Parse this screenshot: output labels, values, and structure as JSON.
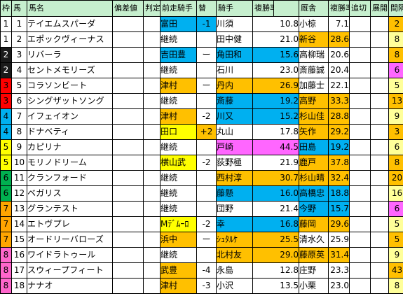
{
  "headers": [
    "枠",
    "馬",
    "馬名",
    "偏差値",
    "判定",
    "前走騎手",
    "替",
    "騎手",
    "複勝率",
    "",
    "厩舎",
    "複勝率",
    "追切",
    "展開",
    "間隔",
    "↑"
  ],
  "colors": {
    "frame": {
      "1": "#ffffff",
      "2": "#1a1a1a",
      "3": "#ff0000",
      "4": "#00b0f0",
      "5": "#ffff00",
      "6": "#00b050",
      "7": "#ffa500",
      "8": "#ff66cc"
    },
    "orange": "#ffc000",
    "yellow": "#ffff00",
    "blue": "#00b0f0",
    "pink": "#ff66ff",
    "lightyellow": "#ffff99",
    "white": "#ffffff",
    "header": "#c6efce"
  },
  "rows": [
    {
      "frame": "1",
      "num": "1",
      "name": "テイエムスパーダ",
      "prev_jockey": "富田",
      "change": "-1",
      "jockey": "川須",
      "jrate": "10.8",
      "trainer": "小椋",
      "trate": "7.1",
      "interval": "2",
      "prev_bg": "blue",
      "change_bg": "blue",
      "jockey_bg": "white",
      "trainer_bg": "white",
      "interval_bg": "orange"
    },
    {
      "frame": "1",
      "num": "2",
      "name": "エポックヴィーナス",
      "prev_jockey": "継続",
      "change": "",
      "jockey": "田中健",
      "jrate": "21.0",
      "trainer": "新谷",
      "trate": "28.6",
      "interval": "8",
      "prev_bg": "white",
      "change_bg": "white",
      "jockey_bg": "white",
      "trainer_bg": "orange",
      "interval_bg": "lightyellow"
    },
    {
      "frame": "2",
      "num": "3",
      "name": "リバーラ",
      "prev_jockey": "吉田豊",
      "change": "ー",
      "jockey": "角田和",
      "jrate": "15.6",
      "trainer": "高柳瑞",
      "trate": "20.6",
      "interval": "8",
      "prev_bg": "blue",
      "change_bg": "white",
      "jockey_bg": "blue",
      "trainer_bg": "white",
      "interval_bg": "orange"
    },
    {
      "frame": "2",
      "num": "4",
      "name": "セントメモリーズ",
      "prev_jockey": "継続",
      "change": "",
      "jockey": "石川",
      "jrate": "23.0",
      "trainer": "斎藤誠",
      "trate": "20.4",
      "interval": "6",
      "prev_bg": "white",
      "change_bg": "white",
      "jockey_bg": "white",
      "trainer_bg": "white",
      "interval_bg": "pink"
    },
    {
      "frame": "3",
      "num": "5",
      "name": "コラソンビート",
      "prev_jockey": "津村",
      "change": "ー",
      "jockey": "丹内",
      "jrate": "26.9",
      "trainer": "加藤士",
      "trate": "22.1",
      "interval": "5",
      "prev_bg": "orange",
      "change_bg": "white",
      "jockey_bg": "orange",
      "trainer_bg": "white",
      "interval_bg": "lightyellow"
    },
    {
      "frame": "3",
      "num": "6",
      "name": "シングザットソング",
      "prev_jockey": "継続",
      "change": "",
      "jockey": "斎藤",
      "jrate": "19.2",
      "trainer": "高野",
      "trate": "33.3",
      "interval": "13",
      "prev_bg": "white",
      "change_bg": "white",
      "jockey_bg": "blue",
      "trainer_bg": "orange",
      "interval_bg": "orange"
    },
    {
      "frame": "4",
      "num": "7",
      "name": "イフェイオン",
      "prev_jockey": "津村",
      "change": "-2",
      "jockey": "川又",
      "jrate": "15.2",
      "trainer": "杉山佳",
      "trate": "28.8",
      "interval": "9",
      "prev_bg": "orange",
      "change_bg": "white",
      "jockey_bg": "blue",
      "trainer_bg": "orange",
      "interval_bg": "lightyellow"
    },
    {
      "frame": "4",
      "num": "8",
      "name": "ドナベティ",
      "prev_jockey": "田口",
      "change": "+2",
      "jockey": "丸山",
      "jrate": "17.8",
      "trainer": "矢作",
      "trate": "29.2",
      "interval": "3",
      "prev_bg": "yellow",
      "change_bg": "orange",
      "jockey_bg": "white",
      "trainer_bg": "orange",
      "interval_bg": "orange"
    },
    {
      "frame": "5",
      "num": "9",
      "name": "カピリナ",
      "prev_jockey": "継続",
      "change": "",
      "jockey": "戸崎",
      "jrate": "44.5",
      "trainer": "田島",
      "trate": "19.2",
      "interval": "6",
      "prev_bg": "white",
      "change_bg": "white",
      "jockey_bg": "pink",
      "trainer_bg": "blue",
      "interval_bg": "lightyellow"
    },
    {
      "frame": "5",
      "num": "10",
      "name": "モリノドリーム",
      "prev_jockey": "横山武",
      "change": "-2",
      "jockey": "荻野極",
      "jrate": "21.9",
      "trainer": "鹿戸",
      "trate": "37.8",
      "interval": "8",
      "prev_bg": "yellow",
      "change_bg": "white",
      "jockey_bg": "white",
      "trainer_bg": "orange",
      "interval_bg": "orange"
    },
    {
      "frame": "6",
      "num": "11",
      "name": "クランフォード",
      "prev_jockey": "継続",
      "change": "",
      "jockey": "西村淳",
      "jrate": "30.7",
      "trainer": "杉山晴",
      "trate": "32.4",
      "interval": "20",
      "prev_bg": "white",
      "change_bg": "white",
      "jockey_bg": "orange",
      "trainer_bg": "orange",
      "interval_bg": "orange"
    },
    {
      "frame": "6",
      "num": "12",
      "name": "ベガリス",
      "prev_jockey": "継続",
      "change": "",
      "jockey": "藤懸",
      "jrate": "16.0",
      "trainer": "高橋忠",
      "trate": "18.8",
      "interval": "16",
      "prev_bg": "white",
      "change_bg": "white",
      "jockey_bg": "blue",
      "trainer_bg": "blue",
      "interval_bg": "lightyellow"
    },
    {
      "frame": "7",
      "num": "13",
      "name": "グランテスト",
      "prev_jockey": "継続",
      "change": "",
      "jockey": "団野",
      "jrate": "21.4",
      "trainer": "今野",
      "trate": "15.7",
      "interval": "6",
      "prev_bg": "white",
      "change_bg": "white",
      "jockey_bg": "white",
      "trainer_bg": "blue",
      "interval_bg": "pink"
    },
    {
      "frame": "7",
      "num": "14",
      "name": "エトヴプレ",
      "prev_jockey": "Mﾃﾞﾑｰﾛ",
      "change": "-2",
      "jockey": "幸",
      "jrate": "16.8",
      "trainer": "藤岡",
      "trate": "29.6",
      "interval": "5",
      "prev_bg": "yellow",
      "change_bg": "white",
      "jockey_bg": "blue",
      "trainer_bg": "orange",
      "interval_bg": "lightyellow"
    },
    {
      "frame": "7",
      "num": "15",
      "name": "オードリーバローズ",
      "prev_jockey": "浜中",
      "change": "ー",
      "jockey": "ｼｭﾀﾙｹ",
      "jrate": "25.5",
      "trainer": "清水久",
      "trate": "25.9",
      "interval": "5",
      "prev_bg": "orange",
      "change_bg": "white",
      "jockey_bg": "orange",
      "trainer_bg": "white",
      "interval_bg": "orange"
    },
    {
      "frame": "8",
      "num": "16",
      "name": "ワイドラトゥール",
      "prev_jockey": "継続",
      "change": "",
      "jockey": "北村友",
      "jrate": "29.0",
      "trainer": "藤原英",
      "trate": "31.4",
      "interval": "9",
      "prev_bg": "white",
      "change_bg": "white",
      "jockey_bg": "orange",
      "trainer_bg": "orange",
      "interval_bg": "lightyellow"
    },
    {
      "frame": "8",
      "num": "17",
      "name": "スウィープフィート",
      "prev_jockey": "武豊",
      "change": "-4",
      "jockey": "永島",
      "jrate": "12.8",
      "trainer": "庄野",
      "trate": "23.3",
      "interval": "43",
      "prev_bg": "orange",
      "change_bg": "white",
      "jockey_bg": "white",
      "trainer_bg": "white",
      "interval_bg": "orange"
    },
    {
      "frame": "8",
      "num": "18",
      "name": "ナナオ",
      "prev_jockey": "津村",
      "change": "-3",
      "jockey": "小沢",
      "jrate": "13.5",
      "trainer": "小栗",
      "trate": "23.0",
      "interval": "8",
      "prev_bg": "orange",
      "change_bg": "white",
      "jockey_bg": "white",
      "trainer_bg": "white",
      "interval_bg": "lightyellow"
    }
  ]
}
